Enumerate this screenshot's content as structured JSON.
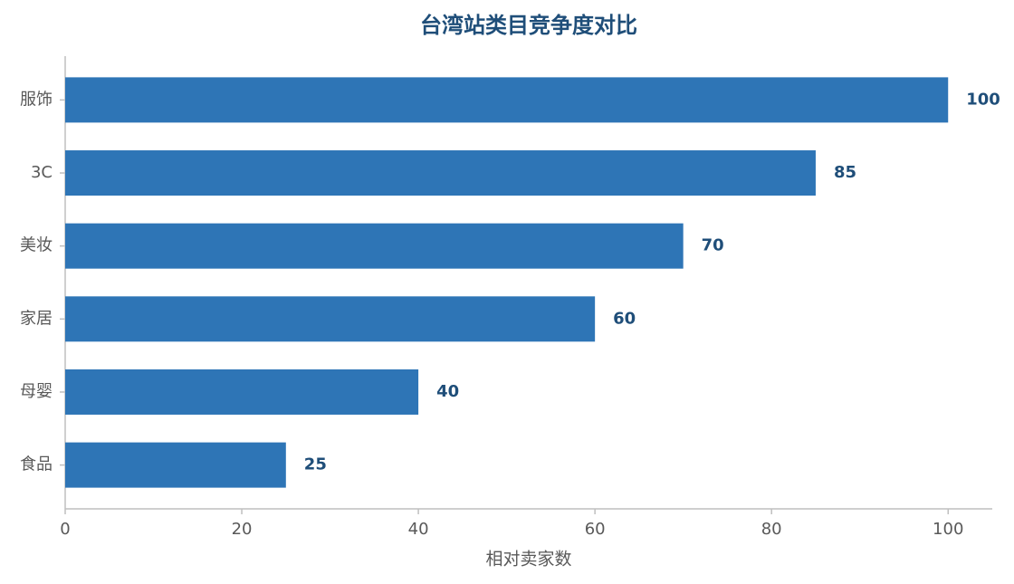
{
  "chart_data": {
    "type": "bar",
    "orientation": "horizontal",
    "title": "台湾站类目竞争度对比",
    "xlabel": "相对卖家数",
    "categories": [
      "服饰",
      "3C",
      "美妆",
      "家居",
      "母婴",
      "食品"
    ],
    "values": [
      100,
      85,
      70,
      60,
      40,
      25
    ],
    "color": "#2e75b6",
    "xlim": [
      0,
      105
    ],
    "xticks": [
      0,
      20,
      40,
      60,
      80,
      100
    ]
  }
}
